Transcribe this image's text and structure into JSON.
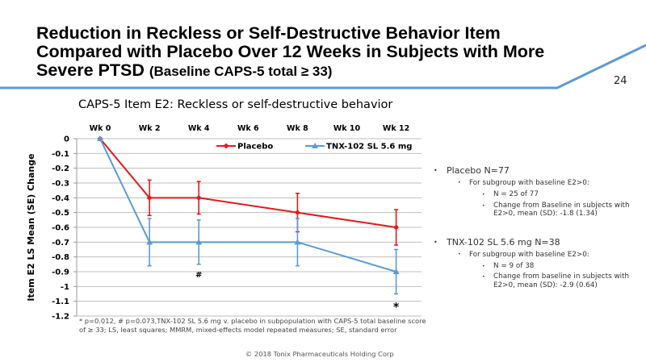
{
  "slide": {
    "title_main": "Reduction in Reckless or Self-Destructive Behavior Item Compared with Placebo Over 12 Weeks in Subjects with More Severe PTSD",
    "title_sub": "(Baseline CAPS-5 total ≥ 33)",
    "page_number": "24",
    "accent_color": "#5b9bd5",
    "footnote": "* p=0.012, # p=0.073,TNX-102 SL 5.6 mg v. placebo in subpopulation with CAPS-5 total baseline score of ≥ 33; LS, least squares; MMRM, mixed-effects model repeated measures; SE, standard error",
    "copyright": "© 2018 Tonix Pharmaceuticals Holding Corp"
  },
  "side_panel": {
    "groups": [
      {
        "label": "Placebo N=77",
        "sub_label": "For subgroup with baseline E2>0:",
        "items": [
          "N = 25 of 77",
          "Change from Baseline in subjects with E2>0, mean (SD): -1.8 (1.34)"
        ]
      },
      {
        "label": "TNX-102 SL 5.6 mg N=38",
        "sub_label": "For subgroup with baseline E2>0:",
        "items": [
          "N = 9 of 38",
          "Change from baseline in subjects with E2>0, mean (SD): -2.9 (0.64)"
        ]
      }
    ]
  },
  "chart_data": {
    "type": "line",
    "title": "CAPS-5 Item E2: Reckless or self-destructive behavior",
    "xlabel": "",
    "ylabel": "Item E2 LS Mean (SE) Change",
    "categories": [
      "Wk 0",
      "Wk 2",
      "Wk 4",
      "Wk 6",
      "Wk 8",
      "Wk 10",
      "Wk 12"
    ],
    "x_axis_position": "top",
    "ylim": [
      -1.2,
      0
    ],
    "yticks": [
      0,
      -0.1,
      -0.2,
      -0.3,
      -0.4,
      -0.5,
      -0.6,
      -0.7,
      -0.8,
      -0.9,
      -1,
      -1.1,
      -1.2
    ],
    "ytick_labels": [
      "0",
      "-0.1",
      "-0.2",
      "-0.3",
      "-0.4",
      "-0.5",
      "-0.6",
      "-0.7",
      "-0.8",
      "-0.9",
      "-1",
      "-1.1",
      "-1.2"
    ],
    "grid": true,
    "legend_position": "top-right",
    "series": [
      {
        "name": "Placebo",
        "color": "#e31a1c",
        "marker": "diamond",
        "x": [
          "Wk 0",
          "Wk 2",
          "Wk 4",
          "Wk 8",
          "Wk 12"
        ],
        "values": [
          0,
          -0.4,
          -0.4,
          -0.5,
          -0.6
        ],
        "se": [
          0,
          0.12,
          0.11,
          0.13,
          0.12
        ]
      },
      {
        "name": "TNX-102 SL 5.6 mg",
        "color": "#5b9bd5",
        "marker": "triangle",
        "x": [
          "Wk 0",
          "Wk 2",
          "Wk 4",
          "Wk 8",
          "Wk 12"
        ],
        "values": [
          0,
          -0.7,
          -0.7,
          -0.7,
          -0.9
        ],
        "se": [
          0,
          0.16,
          0.15,
          0.16,
          0.15
        ]
      }
    ],
    "annotations": [
      {
        "text": "#",
        "x": "Wk 4",
        "below_series": "TNX-102 SL 5.6 mg"
      },
      {
        "text": "*",
        "x": "Wk 12",
        "below_series": "TNX-102 SL 5.6 mg"
      }
    ]
  }
}
